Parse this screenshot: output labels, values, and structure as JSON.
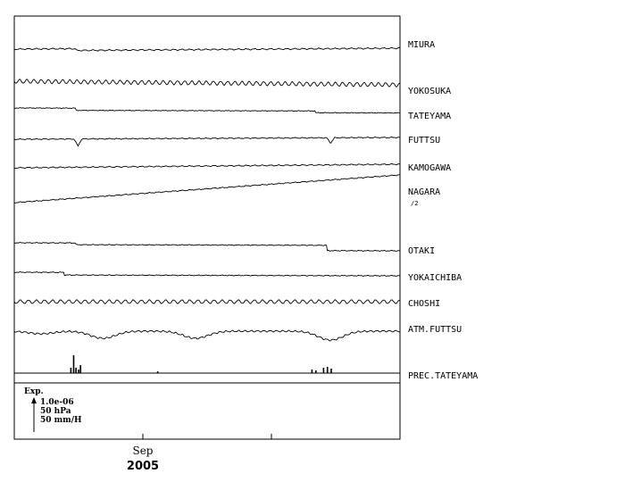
{
  "chart_data": {
    "type": "line",
    "x_axis": {
      "month_label": "Sep",
      "year_label": "2005"
    },
    "legend": {
      "title": "Exp.",
      "lines": [
        "1.0e-06",
        "50 hPa",
        "50 mm/H"
      ]
    },
    "series": [
      {
        "name": "MIURA",
        "scale_note": "",
        "wave": 0.6,
        "period": 9,
        "trend": -3,
        "steps": [
          {
            "at": 0.16,
            "h": 2
          }
        ]
      },
      {
        "name": "YOKOSUKA",
        "scale_note": "",
        "wave": 2.2,
        "period": 8,
        "trend": 4,
        "steps": []
      },
      {
        "name": "TATEYAMA",
        "scale_note": "",
        "wave": 0.2,
        "period": 10,
        "trend": 1,
        "steps": [
          {
            "at": 0.16,
            "h": 2.5
          },
          {
            "at": 0.78,
            "h": 2
          }
        ]
      },
      {
        "name": "FUTTSU",
        "scale_note": "",
        "wave": 0.4,
        "period": 9,
        "trend": -2,
        "steps": [],
        "dips": [
          {
            "at": 0.165,
            "d": 8,
            "w": 0.01
          },
          {
            "at": 0.82,
            "d": 6,
            "w": 0.01
          }
        ]
      },
      {
        "name": "KAMOGAWA",
        "scale_note": "",
        "wave": 0.5,
        "period": 9,
        "trend": -4,
        "steps": []
      },
      {
        "name": "NAGARA",
        "scale_note": "/2",
        "wave": 0.4,
        "period": 9,
        "trend": -31,
        "steps": []
      },
      {
        "name": "OTAKI",
        "scale_note": "",
        "wave": 0.3,
        "period": 9,
        "trend": 1,
        "steps": [
          {
            "at": 0.16,
            "h": 2
          },
          {
            "at": 0.81,
            "h": 6
          }
        ]
      },
      {
        "name": "YOKAICHIBA",
        "scale_note": "",
        "wave": 0.3,
        "period": 9,
        "trend": 1,
        "steps": [
          {
            "at": 0.13,
            "h": 3
          }
        ]
      },
      {
        "name": "CHOSHI",
        "scale_note": "",
        "wave": 2.0,
        "period": 9,
        "trend": 0,
        "steps": []
      },
      {
        "name": "ATM.FUTTSU",
        "scale_note": "",
        "wave": 0.8,
        "period": 7,
        "trend": 0,
        "steps": [],
        "troughs": [
          {
            "at": 0.07,
            "d": 3
          },
          {
            "at": 0.23,
            "d": 8
          },
          {
            "at": 0.47,
            "d": 8
          },
          {
            "at": 0.82,
            "d": 10
          }
        ]
      },
      {
        "name": "PREC.TATEYAMA",
        "scale_note": "",
        "precip": [
          {
            "at": 0.145,
            "h": 6
          },
          {
            "at": 0.152,
            "h": 20
          },
          {
            "at": 0.158,
            "h": 6
          },
          {
            "at": 0.165,
            "h": 4
          },
          {
            "at": 0.17,
            "h": 9
          },
          {
            "at": 0.37,
            "h": 2
          },
          {
            "at": 0.77,
            "h": 4
          },
          {
            "at": 0.78,
            "h": 3
          },
          {
            "at": 0.8,
            "h": 6
          },
          {
            "at": 0.81,
            "h": 7
          },
          {
            "at": 0.82,
            "h": 5
          }
        ]
      }
    ]
  }
}
